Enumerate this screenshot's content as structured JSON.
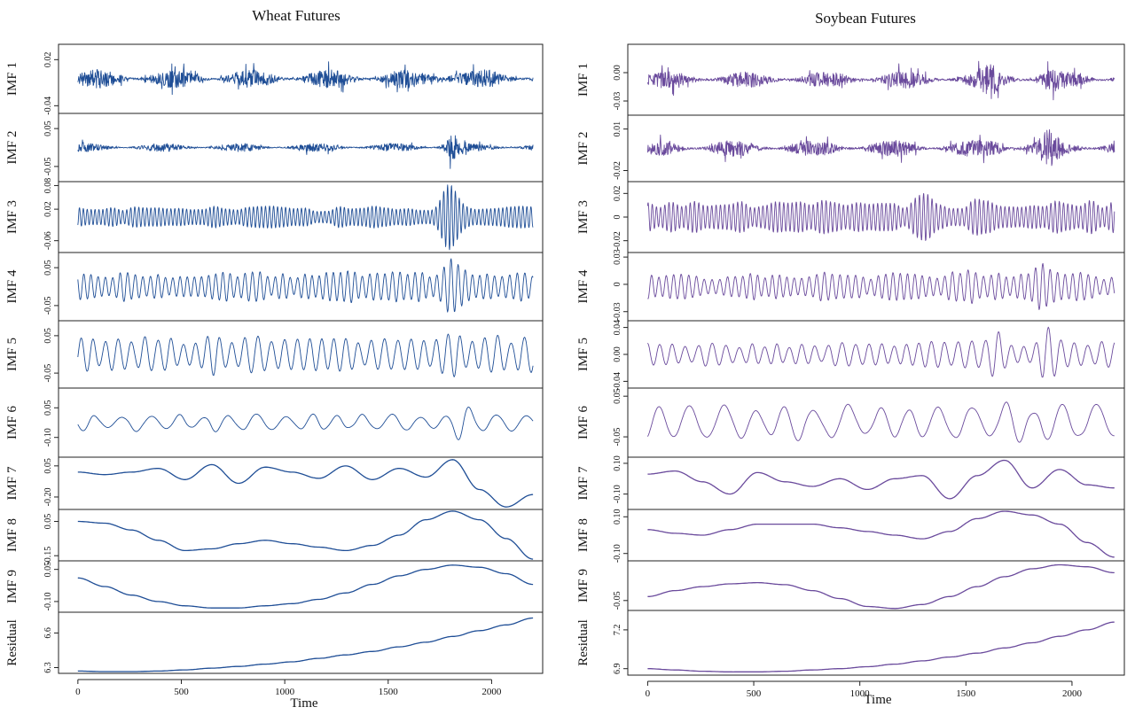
{
  "figure": {
    "xlabel": "Time",
    "x_ticks": [
      "0",
      "500",
      "1000",
      "1500",
      "2000"
    ]
  },
  "chart_data": [
    {
      "type": "line",
      "title": "Wheat Futures",
      "color": "#1f4e96",
      "x_range": [
        0,
        2200
      ],
      "xlabel": "Time",
      "series": [
        {
          "name": "IMF 1",
          "kind": "noise",
          "ylim": [
            -0.05,
            0.04
          ],
          "yticks": [
            "-0.04",
            "0.02"
          ],
          "amp": 0.012,
          "bursts": [
            {
              "x": 1800,
              "mult": 2.4
            }
          ]
        },
        {
          "name": "IMF 2",
          "kind": "noise",
          "ylim": [
            -0.09,
            0.09
          ],
          "yticks": [
            "-0.05",
            "0.05"
          ],
          "amp": 0.011,
          "bursts": [
            {
              "x": 1800,
              "mult": 5.5
            }
          ]
        },
        {
          "name": "IMF 3",
          "kind": "osc",
          "periods": 115,
          "ylim": [
            -0.09,
            0.09
          ],
          "yticks": [
            "-0.06",
            "0.02",
            "0.08"
          ],
          "amp": 0.022,
          "bursts": [
            {
              "x": 1800,
              "mult": 3.6
            }
          ]
        },
        {
          "name": "IMF 4",
          "kind": "osc",
          "periods": 62,
          "ylim": [
            -0.09,
            0.09
          ],
          "yticks": [
            "-0.05",
            "0.05"
          ],
          "amp": 0.032,
          "bursts": [
            {
              "x": 1800,
              "mult": 2.5
            }
          ]
        },
        {
          "name": "IMF 5",
          "kind": "osc",
          "periods": 36,
          "ylim": [
            -0.09,
            0.09
          ],
          "yticks": [
            "-0.05",
            "0.05"
          ],
          "amp": 0.04,
          "bursts": [
            {
              "x": 650,
              "mult": 1.7
            },
            {
              "x": 1830,
              "mult": 1.8
            }
          ]
        },
        {
          "name": "IMF 6",
          "kind": "osc",
          "periods": 17,
          "ylim": [
            -0.2,
            0.15
          ],
          "yticks": [
            "-0.10",
            "0.05"
          ],
          "amp": 0.035,
          "bursts": [
            {
              "x": 1860,
              "mult": 3.8
            }
          ]
        },
        {
          "name": "IMF 7",
          "kind": "curve",
          "ylim": [
            -0.3,
            0.12
          ],
          "yticks": [
            "-0.20",
            "0.05"
          ],
          "y": [
            0.0,
            -0.02,
            0.0,
            0.03,
            -0.06,
            0.06,
            -0.09,
            0.04,
            0.0,
            -0.05,
            0.05,
            -0.06,
            0.03,
            -0.04,
            0.1,
            -0.14,
            -0.28,
            -0.18
          ]
        },
        {
          "name": "IMF 8",
          "kind": "curve",
          "ylim": [
            -0.18,
            0.12
          ],
          "yticks": [
            "-0.15",
            "0.05"
          ],
          "y": [
            0.05,
            0.04,
            0.0,
            -0.06,
            -0.12,
            -0.11,
            -0.08,
            -0.06,
            -0.08,
            -0.1,
            -0.12,
            -0.09,
            -0.03,
            0.06,
            0.11,
            0.06,
            -0.05,
            -0.17
          ]
        },
        {
          "name": "IMF 9",
          "kind": "curve",
          "ylim": [
            -0.15,
            0.09
          ],
          "yticks": [
            "-0.10",
            "0.05"
          ],
          "y": [
            0.01,
            -0.03,
            -0.07,
            -0.1,
            -0.12,
            -0.13,
            -0.13,
            -0.12,
            -0.11,
            -0.09,
            -0.06,
            -0.02,
            0.02,
            0.05,
            0.07,
            0.06,
            0.03,
            -0.02
          ]
        },
        {
          "name": "Residual",
          "kind": "curve",
          "ylim": [
            6.25,
            6.78
          ],
          "yticks": [
            "6.3",
            "6.6"
          ],
          "y": [
            6.27,
            6.265,
            6.265,
            6.27,
            6.28,
            6.295,
            6.31,
            6.33,
            6.35,
            6.38,
            6.41,
            6.44,
            6.48,
            6.52,
            6.57,
            6.62,
            6.67,
            6.73
          ]
        }
      ]
    },
    {
      "type": "line",
      "title": "Soybean Futures",
      "color": "#6a4a9c",
      "x_range": [
        0,
        2200
      ],
      "xlabel": "Time",
      "series": [
        {
          "name": "IMF 1",
          "kind": "noise",
          "ylim": [
            -0.045,
            0.03
          ],
          "yticks": [
            "-0.03",
            "0.00"
          ],
          "amp": 0.009,
          "bursts": [
            {
              "x": 1620,
              "mult": 2.2
            },
            {
              "x": 1880,
              "mult": 1.8
            }
          ]
        },
        {
          "name": "IMF 2",
          "kind": "noise",
          "ylim": [
            -0.028,
            0.02
          ],
          "yticks": [
            "-0.02",
            "0.01"
          ],
          "amp": 0.006,
          "bursts": [
            {
              "x": 1650,
              "mult": 2.5
            },
            {
              "x": 1890,
              "mult": 2.3
            }
          ]
        },
        {
          "name": "IMF 3",
          "kind": "osc",
          "periods": 110,
          "ylim": [
            -0.03,
            0.03
          ],
          "yticks": [
            "-0.02",
            "0",
            "0.02"
          ],
          "amp": 0.011,
          "bursts": [
            {
              "x": 1300,
              "mult": 1.5
            },
            {
              "x": 1600,
              "mult": 1.4
            }
          ]
        },
        {
          "name": "IMF 4",
          "kind": "osc",
          "periods": 62,
          "ylim": [
            -0.04,
            0.035
          ],
          "yticks": [
            "-0.03",
            "0",
            "0.03"
          ],
          "amp": 0.012,
          "bursts": [
            {
              "x": 1500,
              "mult": 2.0
            },
            {
              "x": 1850,
              "mult": 2.4
            }
          ]
        },
        {
          "name": "IMF 5",
          "kind": "osc",
          "periods": 36,
          "ylim": [
            -0.05,
            0.05
          ],
          "yticks": [
            "-0.04",
            "0.00",
            "0.04"
          ],
          "amp": 0.015,
          "bursts": [
            {
              "x": 1640,
              "mult": 2.4
            },
            {
              "x": 1880,
              "mult": 2.5
            }
          ]
        },
        {
          "name": "IMF 6",
          "kind": "osc",
          "periods": 15,
          "ylim": [
            -0.1,
            0.07
          ],
          "yticks": [
            "-0.05",
            "0.05"
          ],
          "amp": 0.035,
          "bursts": [
            {
              "x": 350,
              "mult": 1.6
            },
            {
              "x": 1700,
              "mult": 1.8
            }
          ]
        },
        {
          "name": "IMF 7",
          "kind": "curve",
          "ylim": [
            -0.2,
            0.14
          ],
          "yticks": [
            "-0.10",
            "0.10"
          ],
          "y": [
            0.03,
            0.05,
            -0.02,
            -0.1,
            0.04,
            -0.02,
            -0.05,
            0.0,
            -0.07,
            0.0,
            0.02,
            -0.13,
            0.02,
            0.12,
            -0.06,
            0.06,
            -0.04,
            -0.06
          ]
        },
        {
          "name": "IMF 8",
          "kind": "curve",
          "ylim": [
            -0.14,
            0.14
          ],
          "yticks": [
            "-0.10",
            "0.10"
          ],
          "y": [
            0.03,
            0.01,
            0.0,
            0.03,
            0.06,
            0.06,
            0.06,
            0.04,
            0.02,
            0.0,
            -0.02,
            0.02,
            0.09,
            0.13,
            0.11,
            0.06,
            -0.04,
            -0.12
          ]
        },
        {
          "name": "IMF 9",
          "kind": "curve",
          "ylim": [
            -0.075,
            0.05
          ],
          "yticks": [
            "-0.05"
          ],
          "y": [
            -0.04,
            -0.025,
            -0.015,
            -0.008,
            -0.005,
            -0.01,
            -0.025,
            -0.045,
            -0.065,
            -0.07,
            -0.06,
            -0.04,
            -0.015,
            0.01,
            0.03,
            0.04,
            0.035,
            0.02
          ]
        },
        {
          "name": "Residual",
          "kind": "curve",
          "ylim": [
            6.85,
            7.35
          ],
          "yticks": [
            "6.9",
            "7.2"
          ],
          "y": [
            6.9,
            6.89,
            6.88,
            6.875,
            6.875,
            6.88,
            6.89,
            6.9,
            6.915,
            6.935,
            6.96,
            6.99,
            7.02,
            7.06,
            7.1,
            7.15,
            7.2,
            7.26
          ]
        }
      ]
    }
  ]
}
